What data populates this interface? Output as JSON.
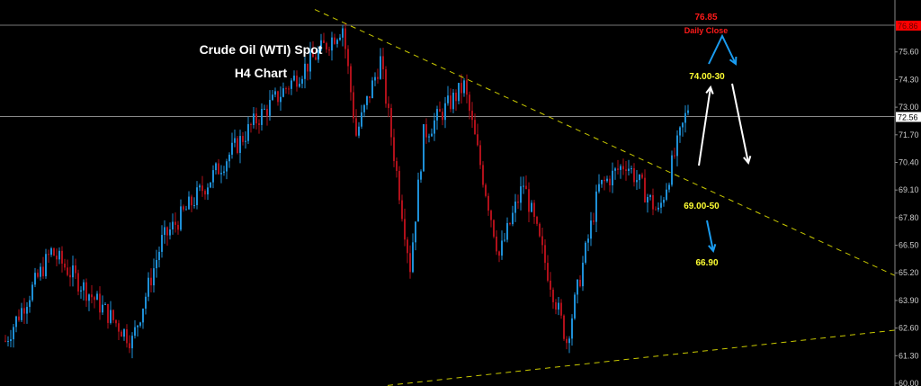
{
  "chart_data": {
    "type": "candlestick",
    "title": "Crude Oil (WTI) Spot",
    "subtitle": "H4 Chart",
    "ylim": [
      60.0,
      76.86
    ],
    "y_ticks": [
      "75.60",
      "74.30",
      "73.00",
      "71.70",
      "70.40",
      "69.10",
      "67.80",
      "66.50",
      "65.20",
      "63.90",
      "62.60",
      "61.30",
      "60.00"
    ],
    "current_price": "72.56",
    "marked_price": "76.86",
    "grid": false,
    "colors": {
      "background": "#000000",
      "bull": "#1e8fd6",
      "bear": "#b0101a",
      "trendline": "#c8c800",
      "annotation_yellow": "#ffff33",
      "annotation_red": "#ff1a1a",
      "arrow_blue": "#1a9cf0",
      "arrow_white": "#ffffff",
      "price_tag_red": "#ff0000"
    },
    "approx_price_path": [
      [
        0,
        62.0
      ],
      [
        17,
        66.2
      ],
      [
        47,
        62.0
      ],
      [
        58,
        66.7
      ],
      [
        93,
        72.4
      ],
      [
        125,
        76.8
      ],
      [
        130,
        71.7
      ],
      [
        139,
        75.2
      ],
      [
        150,
        65.5
      ],
      [
        155,
        71.7
      ],
      [
        170,
        74.0
      ],
      [
        183,
        66.0
      ],
      [
        192,
        69.4
      ],
      [
        208,
        62.0
      ],
      [
        220,
        69.2
      ],
      [
        230,
        70.4
      ],
      [
        242,
        68.0
      ],
      [
        253,
        73.0
      ]
    ],
    "trendlines": [
      {
        "style": "dashed",
        "from": [
          115,
          77.6
        ],
        "to": [
          333,
          64.9
        ]
      },
      {
        "style": "dashed",
        "from": [
          142,
          59.9
        ],
        "to": [
          330,
          62.5
        ]
      }
    ],
    "annotations": {
      "daily_close_value": "76.85",
      "daily_close_label": "Daily Close",
      "resistance": "74.00-30",
      "support": "69.00-50",
      "target": "66.90"
    }
  }
}
